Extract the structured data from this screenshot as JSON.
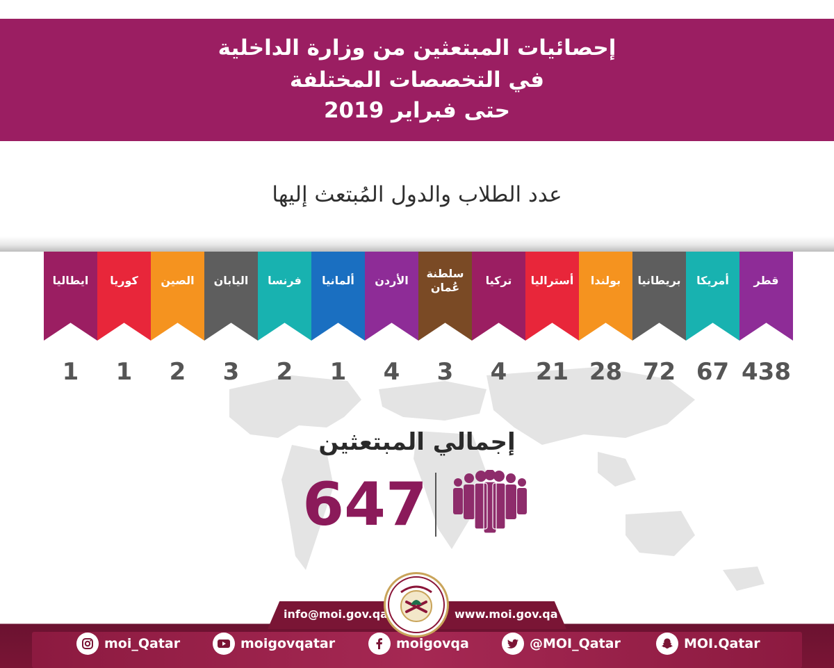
{
  "header": {
    "line1": "إحصائيات المبتعثين من وزارة الداخلية",
    "line2": "في التخصصات المختلفة",
    "line3": "حتى فبراير 2019"
  },
  "subtitle": "عدد الطلاب والدول المُبتعث إليها",
  "countries": [
    {
      "name": "قطر",
      "count": "438",
      "color": "#8e2c97"
    },
    {
      "name": "أمريكا",
      "count": "67",
      "color": "#18b2b0"
    },
    {
      "name": "بريطانيا",
      "count": "72",
      "color": "#5e5e5e"
    },
    {
      "name": "بولندا",
      "count": "28",
      "color": "#f5931f"
    },
    {
      "name": "أستراليا",
      "count": "21",
      "color": "#e8263a"
    },
    {
      "name": "تركيا",
      "count": "4",
      "color": "#9b1e62"
    },
    {
      "name_line1": "سلطنة",
      "name_line2": "عُمان",
      "count": "3",
      "color": "#7a4a25"
    },
    {
      "name": "الأردن",
      "count": "4",
      "color": "#8e2c97"
    },
    {
      "name": "ألمانيا",
      "count": "1",
      "color": "#1a6fc1"
    },
    {
      "name": "فرنسا",
      "count": "2",
      "color": "#18b2b0"
    },
    {
      "name": "اليابان",
      "count": "3",
      "color": "#5e5e5e"
    },
    {
      "name": "الصين",
      "count": "2",
      "color": "#f5931f"
    },
    {
      "name": "كوريا",
      "count": "1",
      "color": "#e8263a"
    },
    {
      "name": "ايطاليا",
      "count": "1",
      "color": "#9b1e62"
    }
  ],
  "total": {
    "label": "إجمالي المبتعثين",
    "value": "647",
    "icon": "people-group-icon"
  },
  "contact": {
    "email": "info@moi.gov.qa",
    "website": "www.moi.gov.qa"
  },
  "social": [
    {
      "icon": "instagram-icon",
      "handle": "moi_Qatar"
    },
    {
      "icon": "youtube-icon",
      "handle": "moigovqatar"
    },
    {
      "icon": "facebook-icon",
      "handle": "moigovqa"
    },
    {
      "icon": "twitter-icon",
      "handle": "@MOI_Qatar"
    },
    {
      "icon": "snapchat-icon",
      "handle": "MOI.Qatar"
    }
  ],
  "colors": {
    "brand": "#9b1e62",
    "total_value": "#8b1a5a",
    "footer": "#7a1535"
  }
}
